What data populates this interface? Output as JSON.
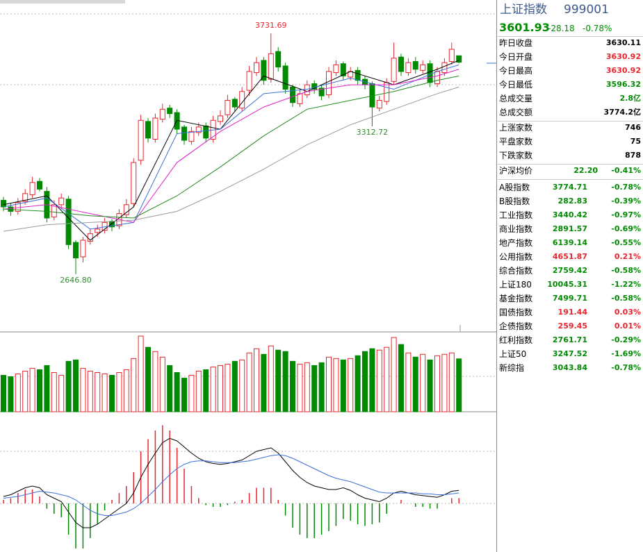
{
  "chart_data": [
    {
      "type": "candlestick",
      "open": [
        2980,
        2950,
        2930,
        2975,
        3005,
        3065,
        3020,
        2905,
        2960,
        2985,
        2790,
        2725,
        2795,
        2835,
        2845,
        2885,
        2865,
        2915,
        2965,
        3160,
        3335,
        3255,
        3345,
        3395,
        3375,
        3310,
        3245,
        3285,
        3315,
        3255,
        3335,
        3365,
        3435,
        3395,
        3475,
        3555,
        3610,
        3525,
        3650,
        3585,
        3490,
        3415,
        3455,
        3505,
        3485,
        3455,
        3555,
        3595,
        3535,
        3565,
        3525,
        3505,
        3395,
        3425,
        3515,
        3625,
        3555,
        3605,
        3565,
        3595,
        3505,
        3555,
        3605,
        3630.92
      ],
      "high": [
        2995,
        2965,
        2990,
        3030,
        3085,
        3080,
        3040,
        2980,
        3010,
        3000,
        2800,
        2815,
        2850,
        2870,
        2900,
        2895,
        2940,
        2985,
        3170,
        3365,
        3350,
        3370,
        3415,
        3410,
        3390,
        3320,
        3310,
        3330,
        3330,
        3360,
        3385,
        3455,
        3445,
        3490,
        3585,
        3625,
        3625,
        3731.69,
        3670,
        3600,
        3500,
        3480,
        3520,
        3520,
        3500,
        3580,
        3610,
        3605,
        3580,
        3580,
        3540,
        3515,
        3450,
        3530,
        3690,
        3640,
        3620,
        3625,
        3610,
        3610,
        3580,
        3620,
        3690,
        3630.92
      ],
      "low": [
        2930,
        2910,
        2915,
        2960,
        2990,
        3020,
        2880,
        2890,
        2940,
        2760,
        2646.8,
        2700,
        2780,
        2815,
        2830,
        2840,
        2850,
        2900,
        2950,
        3140,
        3240,
        3240,
        3330,
        3350,
        3280,
        3230,
        3230,
        3270,
        3240,
        3240,
        3320,
        3350,
        3380,
        3380,
        3450,
        3540,
        3500,
        3510,
        3560,
        3460,
        3400,
        3400,
        3440,
        3460,
        3430,
        3440,
        3540,
        3520,
        3520,
        3500,
        3480,
        3312.72,
        3380,
        3410,
        3500,
        3540,
        3540,
        3550,
        3550,
        3490,
        3490,
        3540,
        3590,
        3596.32
      ],
      "close": [
        2950,
        2930,
        2970,
        3010,
        3060,
        3030,
        2900,
        2960,
        2990,
        2780,
        2720,
        2800,
        2830,
        2850,
        2880,
        2860,
        2920,
        2960,
        3150,
        3340,
        3260,
        3350,
        3390,
        3370,
        3300,
        3250,
        3290,
        3310,
        3260,
        3340,
        3360,
        3430,
        3400,
        3470,
        3560,
        3600,
        3520,
        3640,
        3580,
        3480,
        3420,
        3460,
        3500,
        3480,
        3450,
        3560,
        3590,
        3540,
        3560,
        3520,
        3500,
        3400,
        3430,
        3510,
        3620,
        3560,
        3600,
        3570,
        3590,
        3510,
        3560,
        3600,
        3660,
        3601.93
      ],
      "ylim": [
        2387,
        3882
      ],
      "up_color": "#e8242d",
      "down_color": "#008a00",
      "annotations": [
        {
          "label": "3731.69",
          "at": 37,
          "anchor": "high",
          "color": "#e8242d"
        },
        {
          "label": "2646.80",
          "at": 10,
          "anchor": "low",
          "color": "#2e8b2e"
        },
        {
          "label": "3312.72",
          "at": 51,
          "anchor": "low",
          "color": "#2e8b2e"
        }
      ],
      "ma": {
        "x": [
          0,
          6,
          12,
          18,
          24,
          30,
          36,
          42,
          48,
          54,
          60,
          63
        ],
        "series": [
          {
            "color": "#000000",
            "values": [
              2960,
              3000,
              2800,
              2950,
              3340,
              3300,
              3540,
              3470,
              3560,
              3500,
              3570,
              3610
            ]
          },
          {
            "color": "#3b6fd8",
            "values": [
              2950,
              2990,
              2850,
              2880,
              3280,
              3300,
              3460,
              3480,
              3530,
              3480,
              3560,
              3590
            ]
          },
          {
            "color": "#e020c8",
            "values": [
              2940,
              2960,
              2920,
              2880,
              3150,
              3290,
              3400,
              3470,
              3500,
              3500,
              3540,
              3570
            ]
          },
          {
            "color": "#1e8a1e",
            "values": [
              2940,
              2930,
              2910,
              2900,
              3000,
              3130,
              3270,
              3390,
              3430,
              3470,
              3520,
              3540
            ]
          },
          {
            "color": "#999999",
            "values": [
              2840,
              2870,
              2880,
              2890,
              2930,
              3020,
              3120,
              3230,
              3320,
              3390,
              3460,
              3490
            ]
          }
        ]
      }
    },
    {
      "type": "bar",
      "values": [
        2600,
        2500,
        2700,
        2900,
        3100,
        3000,
        3300,
        2800,
        2600,
        3600,
        3700,
        3100,
        2900,
        2800,
        2700,
        2600,
        2800,
        3000,
        3800,
        5400,
        4600,
        4300,
        3900,
        3300,
        2800,
        2400,
        2600,
        2900,
        3000,
        3200,
        3300,
        3400,
        3600,
        3700,
        4200,
        4500,
        4100,
        4700,
        4400,
        4300,
        3600,
        3400,
        3500,
        3300,
        3500,
        3900,
        3800,
        3700,
        3800,
        4000,
        4300,
        4500,
        4400,
        4600,
        5300,
        4800,
        4200,
        3900,
        4100,
        3700,
        4000,
        4100,
        4200,
        3774.2
      ],
      "ylim": [
        0,
        5600
      ]
    },
    {
      "type": "macd",
      "hist": [
        4,
        6,
        12,
        16,
        16,
        8,
        -6,
        -12,
        -16,
        -36,
        -52,
        -52,
        -40,
        -24,
        -8,
        4,
        12,
        20,
        36,
        60,
        74,
        84,
        90,
        84,
        64,
        40,
        20,
        6,
        -2,
        -4,
        -4,
        -2,
        2,
        4,
        12,
        18,
        18,
        18,
        4,
        -14,
        -28,
        -36,
        -40,
        -40,
        -36,
        -32,
        -26,
        -18,
        -20,
        -24,
        -26,
        -24,
        -22,
        -12,
        0,
        4,
        0,
        -4,
        -4,
        -6,
        -6,
        0,
        6,
        6
      ],
      "dif": [
        8,
        10,
        14,
        18,
        20,
        18,
        10,
        6,
        2,
        -10,
        -22,
        -28,
        -28,
        -24,
        -18,
        -12,
        -6,
        0,
        12,
        30,
        45,
        58,
        70,
        75,
        72,
        65,
        58,
        52,
        48,
        46,
        45,
        46,
        48,
        50,
        55,
        60,
        62,
        64,
        58,
        48,
        38,
        30,
        24,
        20,
        18,
        16,
        16,
        18,
        15,
        10,
        6,
        4,
        2,
        6,
        12,
        14,
        12,
        10,
        9,
        8,
        7,
        10,
        14,
        15
      ],
      "dea": [
        6,
        7,
        8,
        10,
        12,
        14,
        13,
        12,
        10,
        8,
        4,
        -2,
        -8,
        -12,
        -14,
        -14,
        -12,
        -10,
        -6,
        0,
        8,
        16,
        25,
        33,
        40,
        45,
        48,
        49,
        49,
        48,
        47,
        47,
        47,
        48,
        49,
        51,
        53,
        55,
        56,
        55,
        52,
        48,
        44,
        40,
        36,
        32,
        29,
        27,
        25,
        22,
        19,
        16,
        13,
        12,
        12,
        12,
        12,
        12,
        11,
        11,
        10,
        10,
        11,
        12
      ],
      "dif_color": "#000000",
      "dea_color": "#3b6fd8",
      "up_color": "#e8242d",
      "down_color": "#008a00",
      "ylim": [
        -56,
        100
      ]
    }
  ],
  "quote_panel": {
    "header": {
      "name": "上证指数",
      "code": "999001",
      "price": "3601.93",
      "change": "-28.18",
      "change_pct": "-0.78%"
    },
    "stats": [
      {
        "label": "昨日收盘",
        "value": "3630.11",
        "color": "#000000"
      },
      {
        "label": "今日开盘",
        "value": "3630.92",
        "color": "#e8242d"
      },
      {
        "label": "今日最高",
        "value": "3630.92",
        "color": "#e8242d"
      },
      {
        "label": "今日最低",
        "value": "3596.32",
        "color": "#008a00"
      },
      {
        "label": "总成交量",
        "value": "2.8亿",
        "color": "#008a00"
      },
      {
        "label": "总成交额",
        "value": "3774.2亿",
        "color": "#000000"
      }
    ],
    "breadth": [
      {
        "label": "上涨家数",
        "value": "746"
      },
      {
        "label": "平盘家数",
        "value": "75"
      },
      {
        "label": "下跌家数",
        "value": "878"
      }
    ],
    "avg": {
      "label": "沪深均价",
      "value": "22.20",
      "change": "-0.41%",
      "color": "#008a00"
    },
    "indices": [
      {
        "label": "A股指数",
        "value": "3774.71",
        "change": "-0.78%",
        "color": "#008a00"
      },
      {
        "label": "B股指数",
        "value": "282.83",
        "change": "-0.39%",
        "color": "#008a00"
      },
      {
        "label": "工业指数",
        "value": "3440.42",
        "change": "-0.97%",
        "color": "#008a00"
      },
      {
        "label": "商业指数",
        "value": "2891.57",
        "change": "-0.69%",
        "color": "#008a00"
      },
      {
        "label": "地产指数",
        "value": "6139.14",
        "change": "-0.55%",
        "color": "#008a00"
      },
      {
        "label": "公用指数",
        "value": "4651.87",
        "change": "0.21%",
        "color": "#e8242d"
      },
      {
        "label": "综合指数",
        "value": "2759.42",
        "change": "-0.58%",
        "color": "#008a00"
      },
      {
        "label": "上证180",
        "value": "10045.31",
        "change": "-1.22%",
        "color": "#008a00"
      },
      {
        "label": "基金指数",
        "value": "7499.71",
        "change": "-0.58%",
        "color": "#008a00"
      },
      {
        "label": "国债指数",
        "value": "191.44",
        "change": "0.03%",
        "color": "#e8242d"
      },
      {
        "label": "企债指数",
        "value": "259.45",
        "change": "0.01%",
        "color": "#e8242d"
      },
      {
        "label": "红利指数",
        "value": "2761.71",
        "change": "-0.29%",
        "color": "#008a00"
      },
      {
        "label": "上证50",
        "value": "3247.52",
        "change": "-1.69%",
        "color": "#008a00"
      },
      {
        "label": "新综指",
        "value": "3043.84",
        "change": "-0.78%",
        "color": "#008a00"
      }
    ]
  }
}
